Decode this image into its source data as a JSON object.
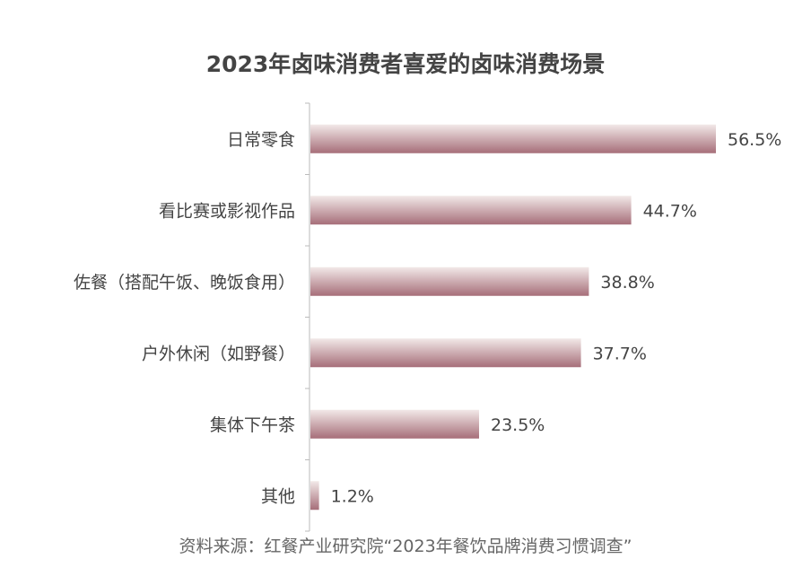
{
  "chart_data": {
    "type": "bar",
    "orientation": "horizontal",
    "title": "2023年卤味消费者喜爱的卤味消费场景",
    "categories": [
      "日常零食",
      "看比赛或影视作品",
      "佐餐（搭配午饭、晚饭食用）",
      "户外休闲（如野餐）",
      "集体下午茶",
      "其他"
    ],
    "values": [
      56.5,
      44.7,
      38.8,
      37.7,
      23.5,
      1.2
    ],
    "data_labels": [
      "56.5%",
      "44.7%",
      "38.8%",
      "37.7%",
      "23.5%",
      "1.2%"
    ],
    "unit": "%",
    "xlim": [
      0,
      70
    ],
    "grid": false,
    "bar_color_top": "#f2e9e8",
    "bar_color_bottom": "#a66e79",
    "source": "资料来源：红餐产业研究院“2023年餐饮品牌消费习惯调查”"
  }
}
